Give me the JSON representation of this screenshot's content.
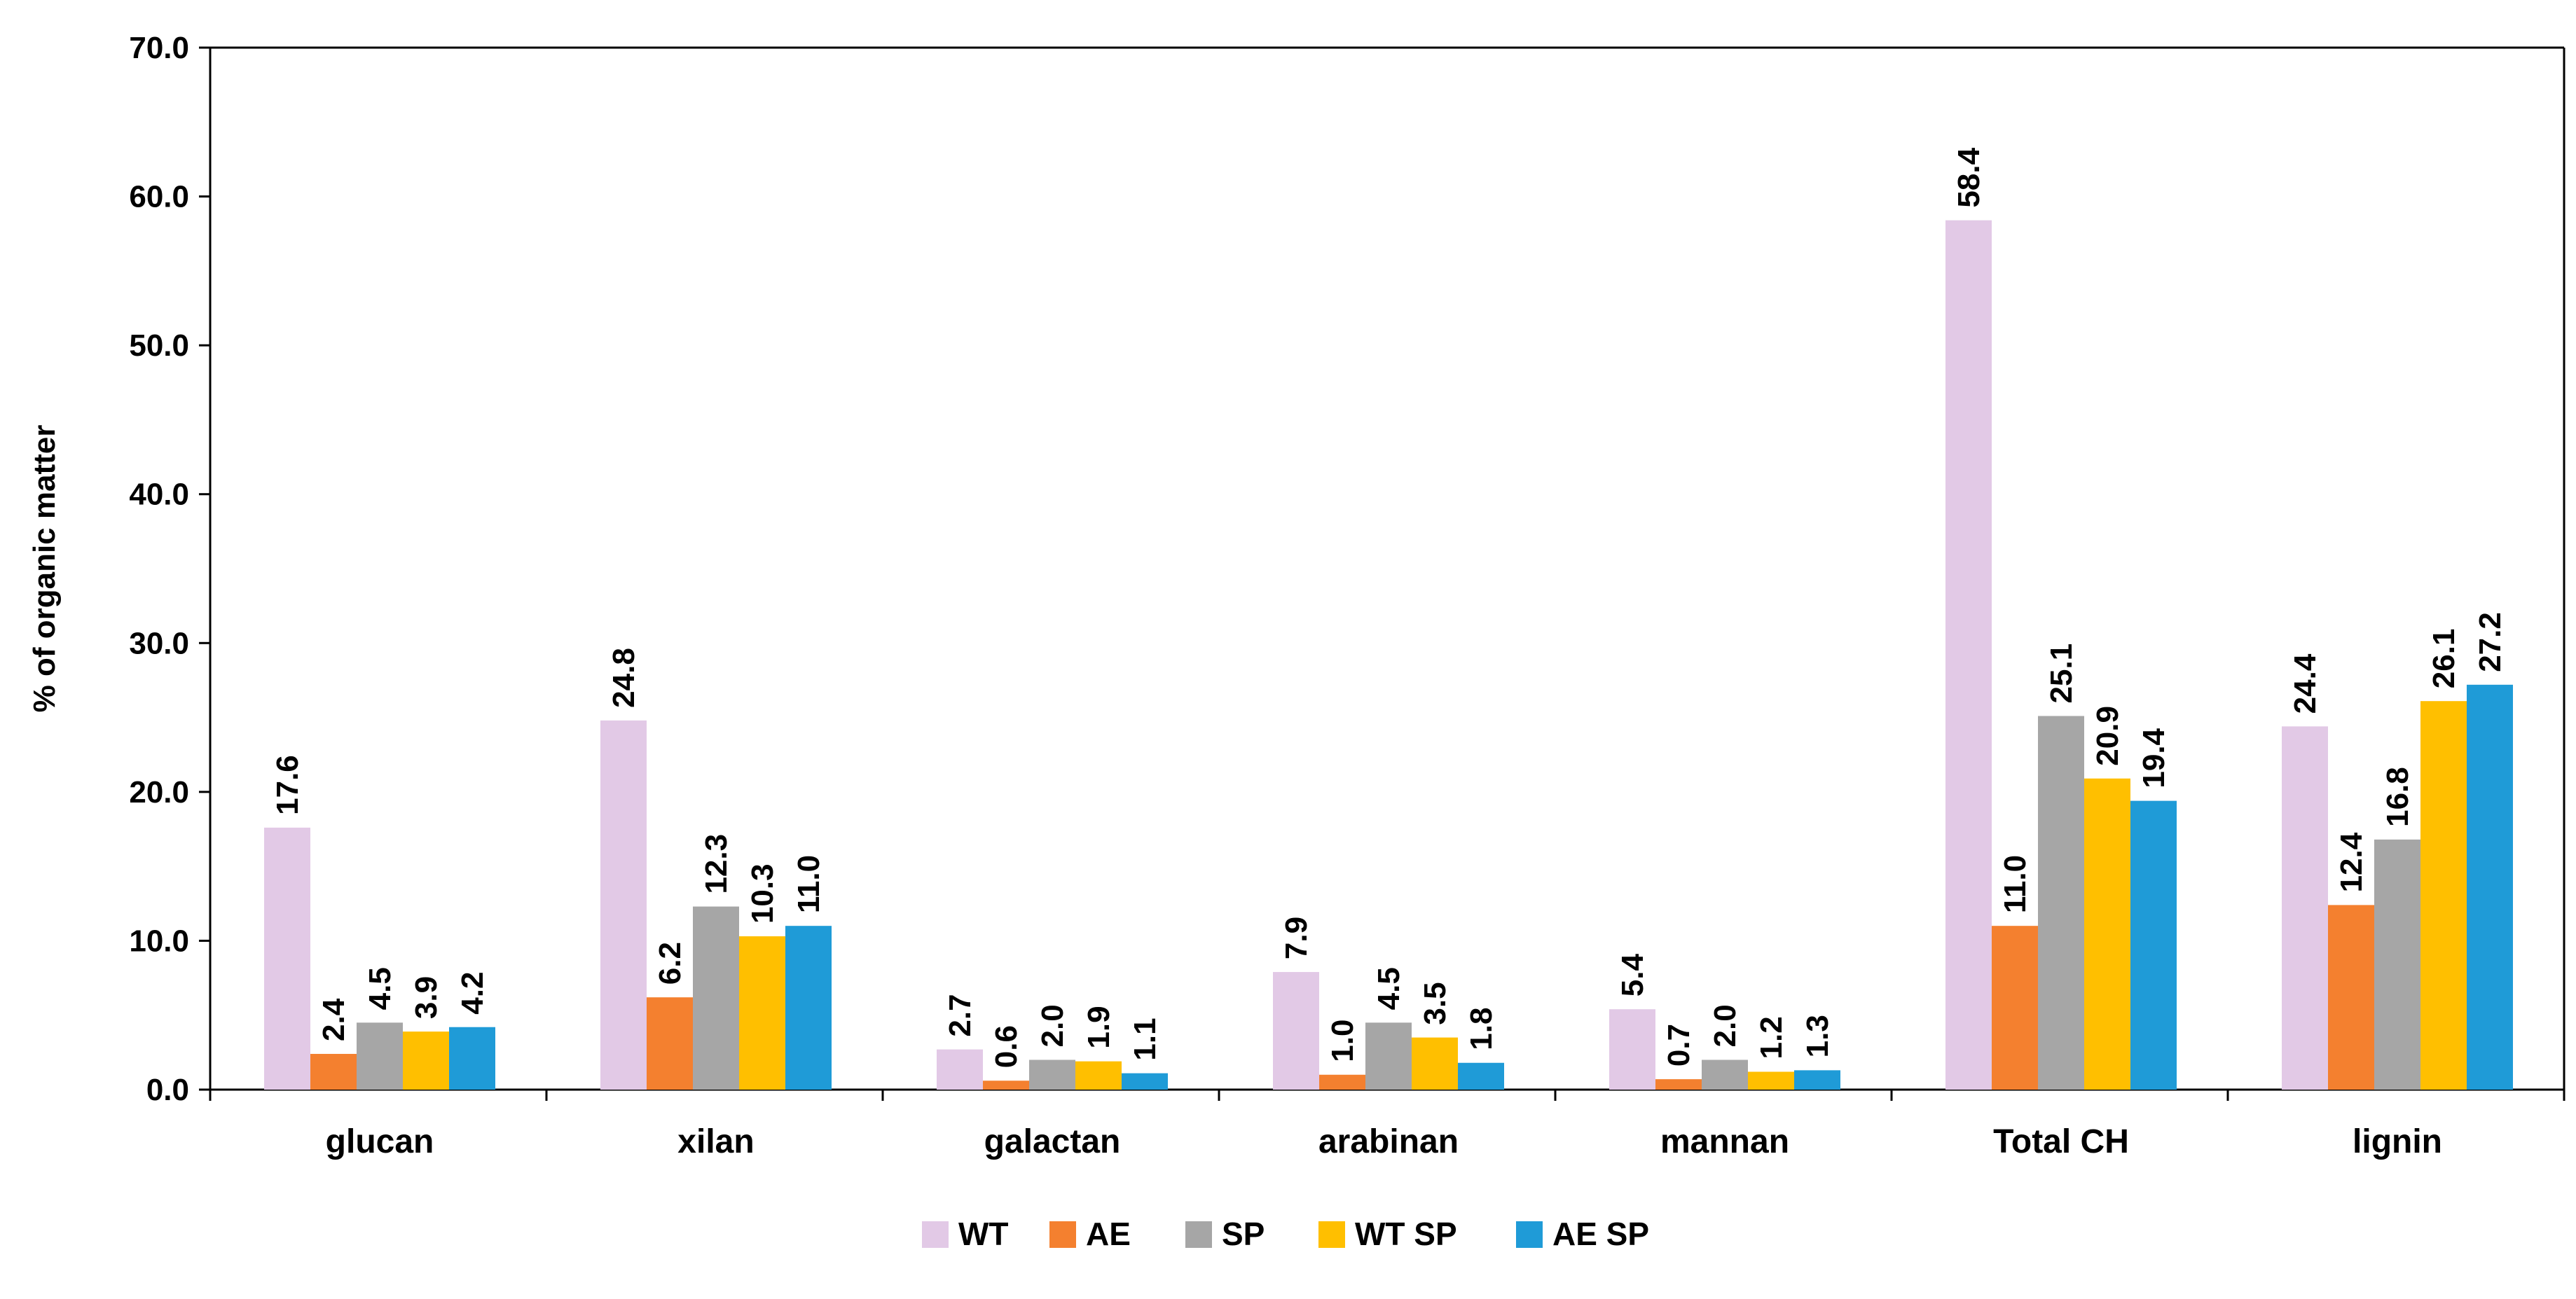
{
  "chart_data": {
    "type": "bar",
    "title": "",
    "xlabel": "",
    "ylabel": "% of  organic matter",
    "ylim": [
      0,
      70
    ],
    "yticks": [
      "0.0",
      "10.0",
      "20.0",
      "30.0",
      "40.0",
      "50.0",
      "60.0",
      "70.0"
    ],
    "grid": false,
    "legend_position": "bottom-center",
    "categories": [
      "glucan",
      "xilan",
      "galactan",
      "arabinan",
      "mannan",
      "Total CH",
      "lignin"
    ],
    "series": [
      {
        "name": "WT",
        "color": "#E2C9E6",
        "values": [
          17.6,
          24.8,
          2.7,
          7.9,
          5.4,
          58.4,
          24.4
        ],
        "labels": [
          "17.6",
          "24.8",
          "2.7",
          "7.9",
          "5.4",
          "58.4",
          "24.4"
        ]
      },
      {
        "name": "AE",
        "color": "#F4802F",
        "values": [
          2.4,
          6.2,
          0.6,
          1.0,
          0.7,
          11.0,
          12.4
        ],
        "labels": [
          "2.4",
          "6.2",
          "0.6",
          "1.0",
          "0.7",
          "11.0",
          "12.4"
        ]
      },
      {
        "name": "SP",
        "color": "#A6A6A6",
        "values": [
          4.5,
          12.3,
          2.0,
          4.5,
          2.0,
          25.1,
          16.8
        ],
        "labels": [
          "4.5",
          "12.3",
          "2.0",
          "4.5",
          "2.0",
          "25.1",
          "16.8"
        ]
      },
      {
        "name": "WT SP",
        "color": "#FFBF00",
        "values": [
          3.9,
          10.3,
          1.9,
          3.5,
          1.2,
          20.9,
          26.1
        ],
        "labels": [
          "3.9",
          "10.3",
          "1.9",
          "3.5",
          "1.2",
          "20.9",
          "26.1"
        ]
      },
      {
        "name": "AE SP",
        "color": "#1F9BD7",
        "values": [
          4.2,
          11.0,
          1.1,
          1.8,
          1.3,
          19.4,
          27.2
        ],
        "labels": [
          "4.2",
          "11.0",
          "1.1",
          "1.8",
          "1.3",
          "19.4",
          "27.2"
        ]
      }
    ]
  }
}
